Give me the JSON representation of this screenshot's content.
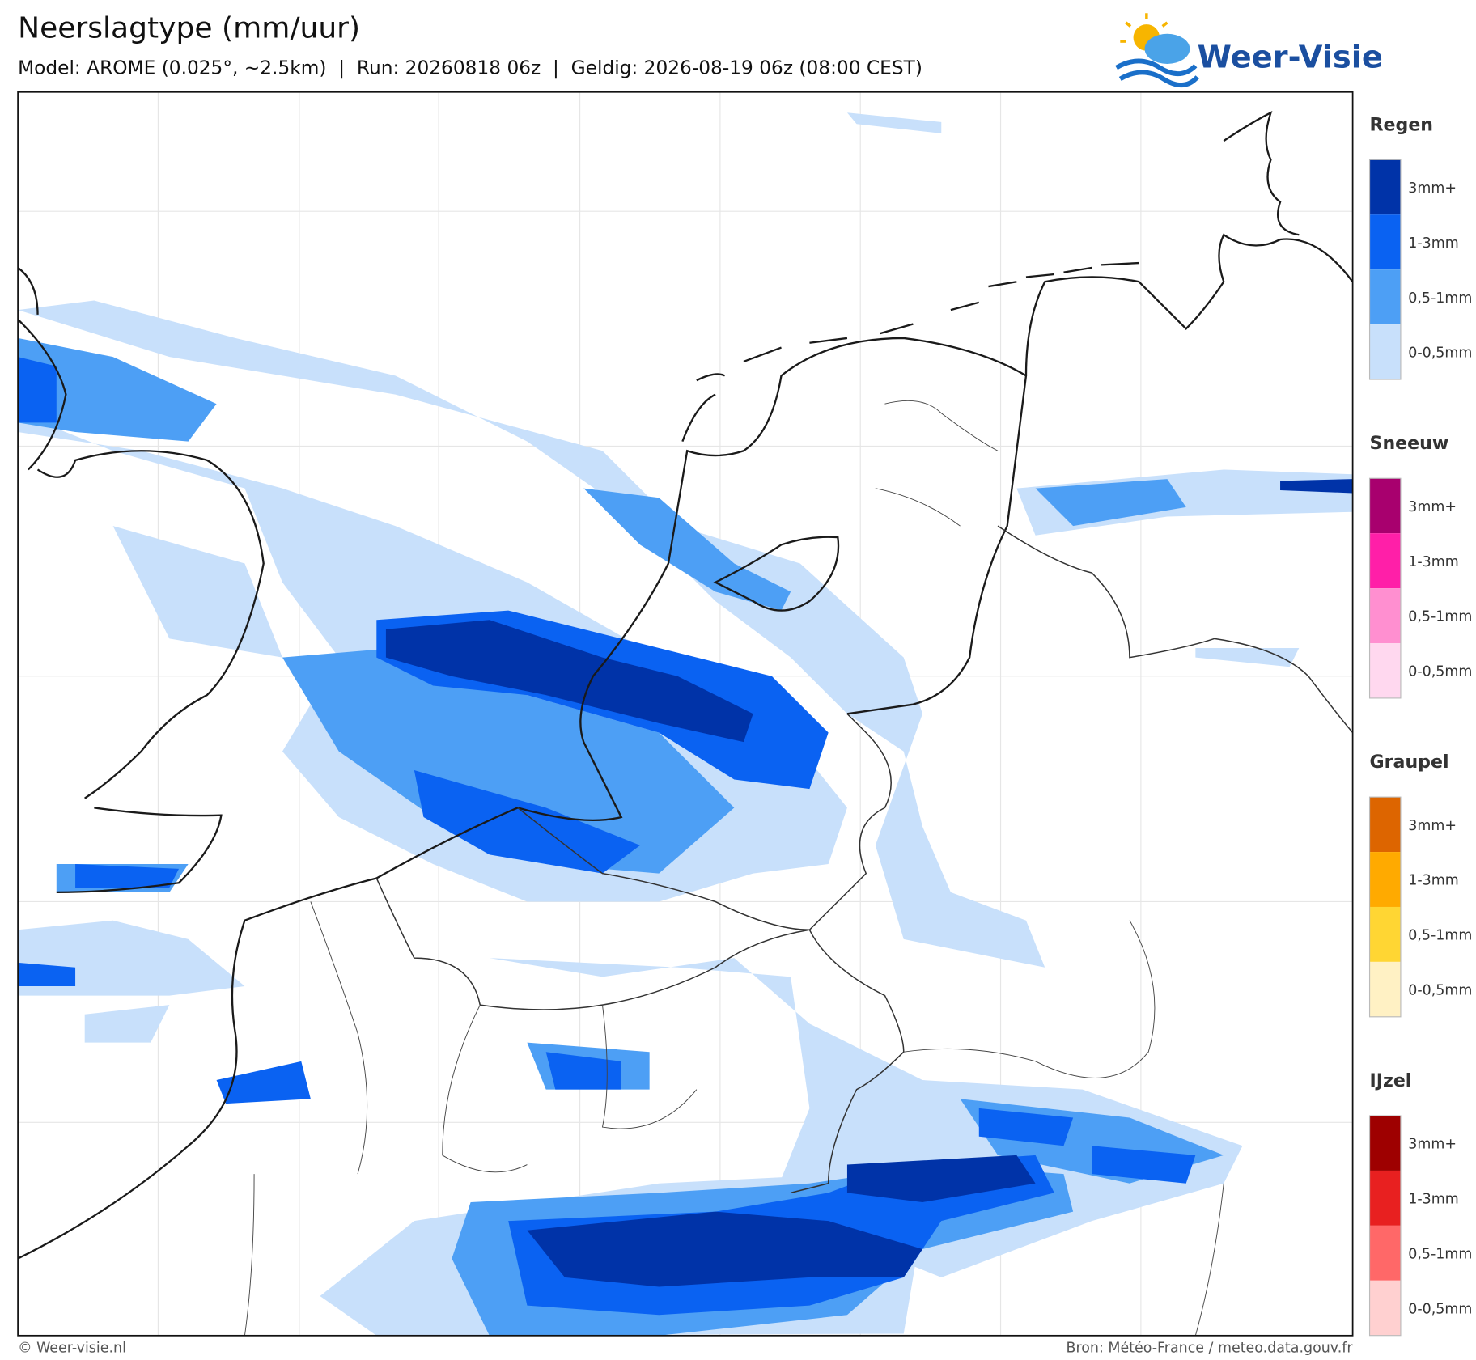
{
  "header": {
    "title": "Neerslagtype (mm/uur)",
    "subtitle": "Model: AROME (0.025°, ~2.5km)  |  Run: 20260818 06z  |  Geldig: 2026-08-19 06z (08:00 CEST)",
    "logo": "Weer-Visie"
  },
  "legend": [
    {
      "title": "Regen",
      "colors": [
        "#0033a8",
        "#0a62f2",
        "#4d9ff5",
        "#c8e0fb"
      ],
      "labels": [
        "3mm+",
        "1-3mm",
        "0,5-1mm",
        "0-0,5mm"
      ]
    },
    {
      "title": "Sneeuw",
      "colors": [
        "#a8006e",
        "#ff1fa8",
        "#ff8fd0",
        "#ffd8ef"
      ],
      "labels": [
        "3mm+",
        "1-3mm",
        "0,5-1mm",
        "0-0,5mm"
      ]
    },
    {
      "title": "Graupel",
      "colors": [
        "#dd6500",
        "#ffaa00",
        "#ffd633",
        "#fff1c4"
      ],
      "labels": [
        "3mm+",
        "1-3mm",
        "0,5-1mm",
        "0-0,5mm"
      ]
    },
    {
      "title": "IJzel",
      "colors": [
        "#9e0000",
        "#e82020",
        "#ff6868",
        "#ffd0d0"
      ],
      "labels": [
        "3mm+",
        "1-3mm",
        "0,5-1mm",
        "0-0,5mm"
      ]
    }
  ],
  "footer": {
    "left": "© Weer-visie.nl",
    "right": "Bron: Météo-France / meteo.data.gouv.fr"
  }
}
